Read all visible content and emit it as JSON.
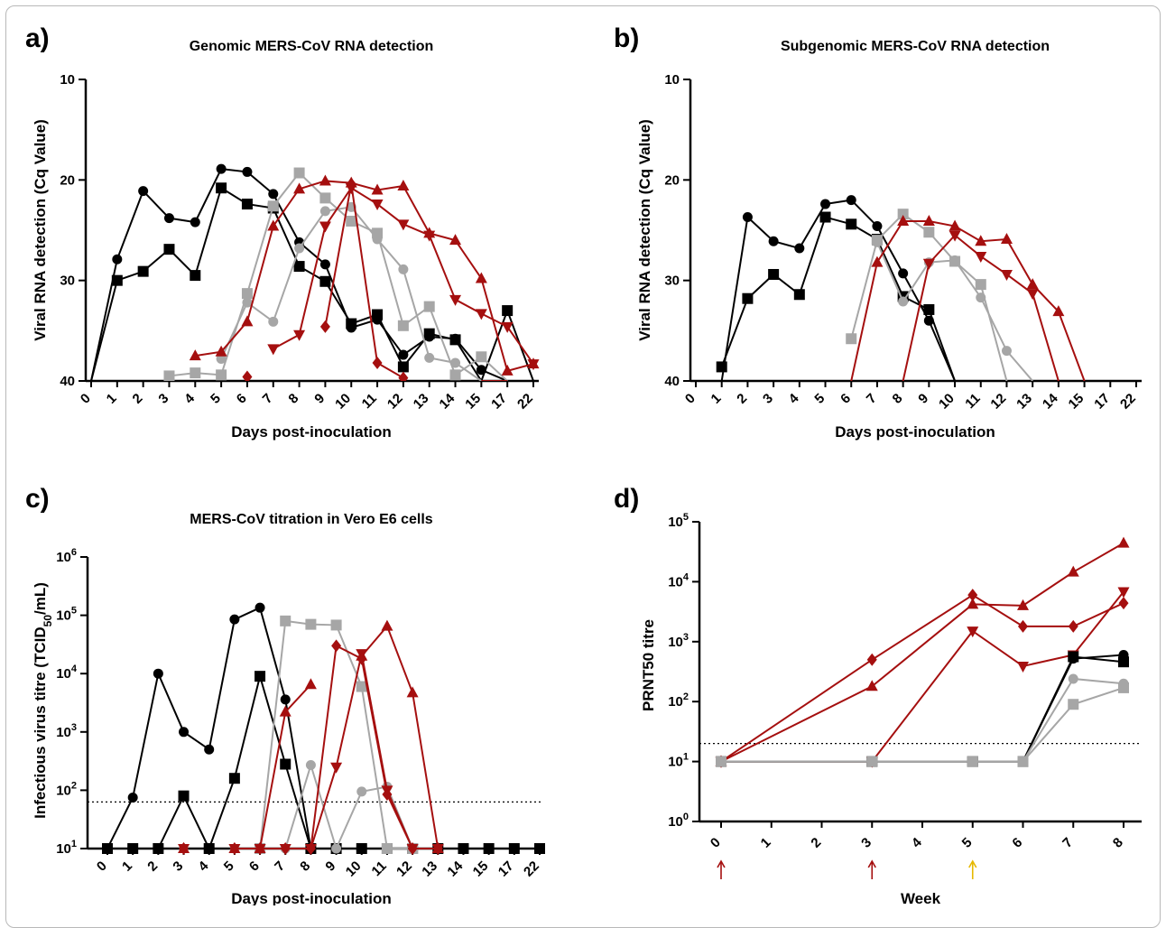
{
  "colors": {
    "black": "#000000",
    "grey": "#a6a6a6",
    "red": "#a50f0f",
    "gold": "#e6b800"
  },
  "panels": [
    {
      "label": "a)",
      "title": "Genomic MERS-CoV RNA detection",
      "ylabel": "Viral RNA detection (Cq Value)",
      "xlabel": "Days post-inoculation"
    },
    {
      "label": "b)",
      "title": "Subgenomic MERS-CoV RNA detection",
      "ylabel": "Viral RNA detection (Cq Value)",
      "xlabel": "Days post-inoculation"
    },
    {
      "label": "c)",
      "title": "MERS-CoV titration in Vero E6 cells",
      "ylabel_main": "Infectious virus titre (TCID",
      "ylabel_sub": "50",
      "ylabel_end": "/mL)",
      "xlabel": "Days post-inoculation"
    },
    {
      "label": "d)",
      "title": "",
      "ylabel": "PRNT50 titre",
      "xlabel": "Week"
    }
  ],
  "chart_data": [
    {
      "type": "line",
      "title": "Genomic MERS-CoV RNA detection",
      "xlabel": "Days post-inoculation",
      "ylabel": "Viral RNA detection (Cq Value)",
      "categories": [
        "0",
        "1",
        "2",
        "3",
        "4",
        "5",
        "6",
        "7",
        "8",
        "9",
        "10",
        "11",
        "12",
        "13",
        "14",
        "15",
        "17",
        "22"
      ],
      "ylim": [
        40,
        10
      ],
      "yticks": [
        "10",
        "20",
        "30",
        "40"
      ],
      "series": [
        {
          "color": "black",
          "marker": "circle",
          "values": [
            40,
            27.9,
            21.1,
            23.8,
            24.2,
            18.9,
            19.2,
            21.4,
            26.2,
            28.4,
            34.7,
            33.9,
            37.4,
            35.6,
            35.8,
            38.9,
            40,
            40
          ]
        },
        {
          "color": "black",
          "marker": "square",
          "values": [
            40,
            30,
            29.1,
            26.9,
            29.5,
            20.8,
            22.4,
            22.8,
            28.6,
            30.1,
            34.3,
            33.4,
            38.6,
            35.3,
            35.9,
            40,
            33,
            40
          ]
        },
        {
          "color": "grey",
          "marker": "circle",
          "values": [
            null,
            null,
            null,
            null,
            null,
            37.8,
            32.2,
            34.1,
            26.8,
            23.1,
            22.7,
            25.9,
            28.9,
            37.7,
            38.2,
            40,
            null,
            null
          ]
        },
        {
          "color": "grey",
          "marker": "square",
          "values": [
            null,
            null,
            null,
            39.5,
            39.2,
            39.4,
            31.3,
            22.6,
            19.3,
            21.8,
            24.1,
            25.3,
            34.5,
            32.6,
            39.4,
            37.6,
            40,
            null
          ]
        },
        {
          "color": "red",
          "marker": "triangle-up",
          "values": [
            null,
            null,
            null,
            null,
            37.5,
            37.1,
            34.1,
            24.6,
            20.9,
            20.1,
            20.3,
            21.0,
            20.6,
            25.3,
            26.0,
            29.8,
            39,
            38.3
          ]
        },
        {
          "color": "red",
          "marker": "triangle-down",
          "values": [
            null,
            null,
            null,
            null,
            null,
            null,
            null,
            36.8,
            35.4,
            24.6,
            20.8,
            22.4,
            24.4,
            25.5,
            31.9,
            33.3,
            34.6,
            38.3
          ]
        },
        {
          "color": "red",
          "marker": "diamond",
          "values": [
            null,
            null,
            null,
            null,
            null,
            null,
            39.6,
            null,
            null,
            34.6,
            20.4,
            38.2,
            39.7,
            null,
            null,
            40,
            40,
            null
          ]
        }
      ]
    },
    {
      "type": "line",
      "title": "Subgenomic MERS-CoV RNA detection",
      "xlabel": "Days post-inoculation",
      "ylabel": "Viral RNA detection (Cq Value)",
      "categories": [
        "0",
        "1",
        "2",
        "3",
        "4",
        "5",
        "6",
        "7",
        "8",
        "9",
        "10",
        "11",
        "12",
        "13",
        "14",
        "15",
        "17",
        "22"
      ],
      "ylim": [
        40,
        10
      ],
      "yticks": [
        "10",
        "20",
        "30",
        "40"
      ],
      "series": [
        {
          "color": "black",
          "marker": "circle",
          "values": [
            null,
            40,
            23.7,
            26.1,
            26.8,
            22.4,
            22.0,
            24.6,
            29.3,
            34.0,
            40,
            null,
            null,
            null,
            null,
            null,
            null,
            null
          ]
        },
        {
          "color": "black",
          "marker": "square",
          "values": [
            null,
            38.6,
            31.8,
            29.4,
            31.4,
            23.7,
            24.4,
            25.9,
            31.6,
            32.9,
            40,
            null,
            null,
            null,
            null,
            null,
            null,
            null
          ]
        },
        {
          "color": "grey",
          "marker": "circle",
          "values": [
            null,
            null,
            null,
            null,
            null,
            40,
            null,
            26.2,
            32.1,
            28.2,
            28.0,
            31.7,
            37.0,
            40,
            null,
            null,
            null,
            null
          ]
        },
        {
          "color": "grey",
          "marker": "square",
          "values": [
            null,
            null,
            null,
            null,
            null,
            null,
            35.8,
            26.0,
            23.4,
            25.2,
            28.1,
            30.4,
            40,
            null,
            null,
            null,
            null,
            null
          ]
        },
        {
          "color": "red",
          "marker": "triangle-up",
          "values": [
            null,
            null,
            null,
            null,
            null,
            null,
            40,
            28.2,
            24.1,
            24.1,
            24.6,
            26.1,
            25.9,
            30.4,
            33.1,
            40,
            null,
            null
          ]
        },
        {
          "color": "red",
          "marker": "triangle-down",
          "values": [
            null,
            null,
            null,
            null,
            null,
            null,
            null,
            null,
            40,
            28.3,
            25.5,
            27.6,
            29.4,
            31.3,
            40,
            null,
            null,
            null
          ]
        }
      ]
    },
    {
      "type": "line",
      "title": "MERS-CoV titration in Vero E6 cells",
      "xlabel": "Days post-inoculation",
      "ylabel": "Infectious virus titre (TCID50/mL)",
      "categories": [
        "0",
        "1",
        "2",
        "3",
        "4",
        "5",
        "6",
        "7",
        "8",
        "9",
        "10",
        "11",
        "12",
        "13",
        "14",
        "15",
        "17",
        "22"
      ],
      "yscale": "log",
      "ylim": [
        10,
        1000000
      ],
      "threshold": 63,
      "series": [
        {
          "color": "black",
          "marker": "circle",
          "values": [
            10,
            75,
            10000,
            1000,
            500,
            85000,
            135000,
            3600,
            10,
            10,
            10,
            10,
            10,
            10,
            10,
            10,
            10,
            10
          ]
        },
        {
          "color": "black",
          "marker": "square",
          "values": [
            10,
            10,
            10,
            80,
            10,
            160,
            9000,
            280,
            10,
            10,
            10,
            10,
            10,
            10,
            10,
            10,
            10,
            10
          ]
        },
        {
          "color": "grey",
          "marker": "circle",
          "values": [
            null,
            null,
            null,
            null,
            null,
            null,
            10,
            10,
            270,
            10,
            95,
            115,
            10,
            null,
            null,
            null,
            null,
            null
          ]
        },
        {
          "color": "grey",
          "marker": "square",
          "values": [
            null,
            null,
            null,
            null,
            null,
            null,
            10,
            80000,
            70000,
            68000,
            6000,
            10,
            10,
            null,
            null,
            null,
            null,
            null
          ]
        },
        {
          "color": "red",
          "marker": "triangle-up",
          "values": [
            null,
            null,
            null,
            10,
            null,
            10,
            10,
            2200,
            6500,
            null,
            20000,
            65000,
            4700,
            10,
            null,
            null,
            null,
            null
          ]
        },
        {
          "color": "red",
          "marker": "triangle-down",
          "values": [
            null,
            null,
            null,
            10,
            null,
            10,
            10,
            10,
            10,
            250,
            22000,
            100,
            10,
            10,
            null,
            null,
            null,
            null
          ]
        },
        {
          "color": "red",
          "marker": "diamond",
          "values": [
            null,
            null,
            null,
            10,
            null,
            10,
            10,
            10,
            10,
            30000,
            18000,
            85,
            10,
            10,
            null,
            null,
            null,
            null
          ]
        }
      ]
    },
    {
      "type": "line",
      "title": "",
      "xlabel": "Week",
      "ylabel": "PRNT50 titre",
      "x": [
        0,
        1,
        2,
        3,
        4,
        5,
        6,
        7,
        8
      ],
      "xticks": [
        "0",
        "1",
        "2",
        "3",
        "4",
        "5",
        "6",
        "7",
        "8"
      ],
      "yscale": "log",
      "ylim": [
        1,
        100000
      ],
      "threshold": 20,
      "arrows": [
        {
          "week": 0,
          "color": "red"
        },
        {
          "week": 3,
          "color": "red"
        },
        {
          "week": 5,
          "color": "gold"
        }
      ],
      "series": [
        {
          "color": "red",
          "marker": "triangle-up",
          "x": [
            0,
            3,
            5,
            6,
            7,
            8
          ],
          "values": [
            10,
            180,
            4200,
            4000,
            14500,
            44000
          ]
        },
        {
          "color": "red",
          "marker": "diamond",
          "x": [
            0,
            3,
            5,
            6,
            7,
            8
          ],
          "values": [
            10,
            500,
            6000,
            1800,
            1800,
            4400
          ]
        },
        {
          "color": "red",
          "marker": "triangle-down",
          "x": [
            0,
            3,
            5,
            6,
            7,
            8
          ],
          "values": [
            10,
            10,
            1500,
            390,
            600,
            6800
          ]
        },
        {
          "color": "black",
          "marker": "circle",
          "x": [
            0,
            3,
            5,
            6,
            7,
            8
          ],
          "values": [
            10,
            10,
            10,
            10,
            520,
            600
          ]
        },
        {
          "color": "black",
          "marker": "square",
          "x": [
            0,
            3,
            5,
            6,
            7,
            8
          ],
          "values": [
            10,
            10,
            10,
            10,
            560,
            460
          ]
        },
        {
          "color": "grey",
          "marker": "circle",
          "x": [
            0,
            3,
            5,
            6,
            7,
            8
          ],
          "values": [
            10,
            10,
            10,
            10,
            240,
            200
          ]
        },
        {
          "color": "grey",
          "marker": "square",
          "x": [
            0,
            3,
            5,
            6,
            7,
            8
          ],
          "values": [
            10,
            10,
            10,
            10,
            90,
            170
          ]
        }
      ]
    }
  ]
}
